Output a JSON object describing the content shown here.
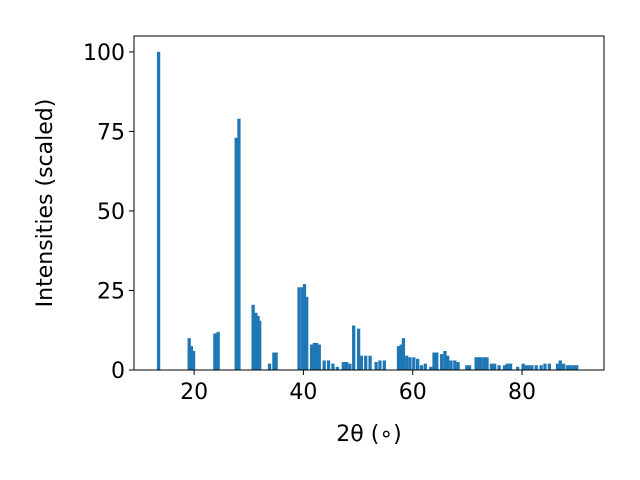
{
  "chart_data": {
    "type": "bar",
    "title": "",
    "xlabel": "2θ (∘)",
    "ylabel": "Intensities (scaled)",
    "xlim": [
      9,
      95
    ],
    "ylim": [
      0,
      105
    ],
    "xticks": [
      20,
      40,
      60,
      80
    ],
    "yticks": [
      0,
      25,
      50,
      75,
      100
    ],
    "bar_width": 0.6,
    "bar_color": "#1f77b4",
    "grid": false,
    "series": [
      {
        "x": [
          13.5,
          19.1,
          19.5,
          19.9,
          23.8,
          24.4,
          27.7,
          28.2,
          30.8,
          31.3,
          31.7,
          32.0,
          33.8,
          34.6,
          35.0,
          39.2,
          39.8,
          40.2,
          40.6,
          41.5,
          42.0,
          42.4,
          42.9,
          43.8,
          44.6,
          45.4,
          46.2,
          47.3,
          47.9,
          48.5,
          49.2,
          50.1,
          50.6,
          51.4,
          52.2,
          53.3,
          54.0,
          54.8,
          57.4,
          57.9,
          58.3,
          58.9,
          59.5,
          60.2,
          60.9,
          61.6,
          62.3,
          63.3,
          63.9,
          64.4,
          65.3,
          65.9,
          66.4,
          67.0,
          67.7,
          68.3,
          69.9,
          70.4,
          71.6,
          72.0,
          72.5,
          73.1,
          73.6,
          74.4,
          75.0,
          75.8,
          76.8,
          77.3,
          77.9,
          79.2,
          80.2,
          80.6,
          81.2,
          81.8,
          82.6,
          83.5,
          84.2,
          85.0,
          86.5,
          87.0,
          87.6,
          88.3,
          88.9,
          89.5,
          90.0
        ],
        "values": [
          100,
          10,
          7.5,
          6,
          11.5,
          12,
          73,
          79,
          20.5,
          18,
          17,
          15.5,
          2,
          5.5,
          5.5,
          26,
          26,
          27,
          23,
          8,
          8.5,
          8.5,
          8,
          3,
          3,
          2,
          1,
          2.5,
          2.5,
          2,
          14,
          13,
          4.5,
          4.5,
          4.5,
          2.5,
          3,
          3,
          7.5,
          8,
          10,
          4.5,
          4,
          4,
          3.5,
          1.5,
          2,
          1,
          5.5,
          5.5,
          5,
          6,
          4.5,
          3,
          3,
          2.5,
          1.5,
          1.5,
          4,
          4,
          4,
          4,
          4,
          2,
          2,
          1.5,
          1.5,
          2,
          2,
          1,
          2,
          1.5,
          1.5,
          1.5,
          1.5,
          1.5,
          2,
          2,
          2,
          3,
          2,
          1.5,
          1.5,
          1.5,
          1.5
        ]
      }
    ]
  }
}
